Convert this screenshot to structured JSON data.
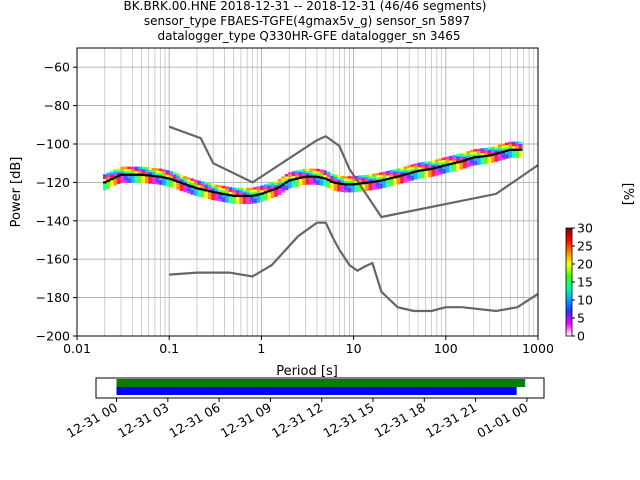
{
  "chart_data": {
    "type": "line",
    "title_lines": [
      "BK.BRK.00.HNE   2018-12-31 -- 2018-12-31  (46/46 segments)",
      "sensor_type FBAES-TGFE(4gmax5v_g) sensor_sn 5897",
      "datalogger_type Q330HR-GFE datalogger_sn 3465"
    ],
    "xlabel": "Period [s]",
    "ylabel": "Power [dB]",
    "x_scale": "log",
    "xlim": [
      0.01,
      1000
    ],
    "ylim": [
      -200,
      -50
    ],
    "x_ticks": [
      0.01,
      0.1,
      1,
      10,
      100,
      1000
    ],
    "x_tick_labels": [
      "0.01",
      "0.1",
      "1",
      "10",
      "100",
      "1000"
    ],
    "y_ticks": [
      -60,
      -80,
      -100,
      -120,
      -140,
      -160,
      -180,
      -200
    ],
    "y_tick_labels": [
      "−60",
      "−80",
      "−100",
      "−120",
      "−140",
      "−160",
      "−180",
      "−200"
    ],
    "grid": true,
    "colorbar": {
      "label": "[%]",
      "range": [
        0,
        30
      ],
      "ticks": [
        0,
        5,
        10,
        15,
        20,
        25,
        30
      ],
      "tick_labels": [
        "0",
        "5",
        "10",
        "15",
        "20",
        "25",
        "30"
      ]
    },
    "series": [
      {
        "x": [
          0.1,
          0.22,
          0.3,
          0.8,
          4.0,
          5.0,
          7.0,
          9.0,
          20.0,
          350.0,
          1000.0
        ],
        "y": [
          -91,
          -97,
          -110,
          -120,
          -98,
          -96,
          -101,
          -113,
          -138,
          -126,
          -111
        ],
        "color": "#666666"
      },
      {
        "x": [
          0.1,
          0.2,
          0.45,
          0.8,
          1.3,
          2.5,
          4.0,
          5.0,
          6.0,
          7.0,
          9.0,
          11.0,
          13.0,
          16.0,
          20.0,
          30.0,
          45.0,
          70.0,
          100.0,
          150.0,
          350.0,
          600.0,
          1000.0
        ],
        "y": [
          -168,
          -167,
          -167,
          -169,
          -163,
          -148,
          -141,
          -141,
          -149,
          -155,
          -163,
          -166,
          -164,
          -162,
          -177,
          -185,
          -187,
          -187,
          -185,
          -185,
          -187,
          -185,
          -178
        ],
        "color": "#666666"
      },
      {
        "x": [
          0.02,
          0.03,
          0.05,
          0.08,
          0.1,
          0.15,
          0.2,
          0.3,
          0.5,
          0.8,
          1.0,
          1.5,
          2.0,
          3.0,
          4.0,
          5.0,
          6.0,
          8.0,
          10.0,
          15.0,
          20.0,
          30.0,
          50.0,
          70.0,
          100.0,
          150.0,
          200.0,
          300.0,
          500.0,
          650.0
        ],
        "y": [
          -120,
          -116,
          -116,
          -117,
          -118,
          -121,
          -123,
          -125,
          -127,
          -127,
          -126,
          -123,
          -119,
          -117,
          -117,
          -118,
          -120,
          -121,
          -121,
          -120,
          -119,
          -117,
          -114,
          -113,
          -111,
          -109,
          -107,
          -106,
          -103,
          -103
        ],
        "color": "#000000"
      }
    ],
    "timeline": {
      "tick_labels": [
        "12-31 00",
        "12-31 03",
        "12-31 06",
        "12-31 09",
        "12-31 12",
        "12-31 15",
        "12-31 18",
        "12-31 21",
        "01-01 00"
      ],
      "tick_hours": [
        0,
        3,
        6,
        9,
        12,
        15,
        18,
        21,
        24
      ],
      "range_hours": [
        -1.2,
        25.0
      ],
      "bars": [
        {
          "start_hour": 0,
          "end_hour": 23.9,
          "color": "#008000"
        },
        {
          "start_hour": 0,
          "end_hour": 23.4,
          "color": "#0000ff"
        }
      ]
    }
  }
}
